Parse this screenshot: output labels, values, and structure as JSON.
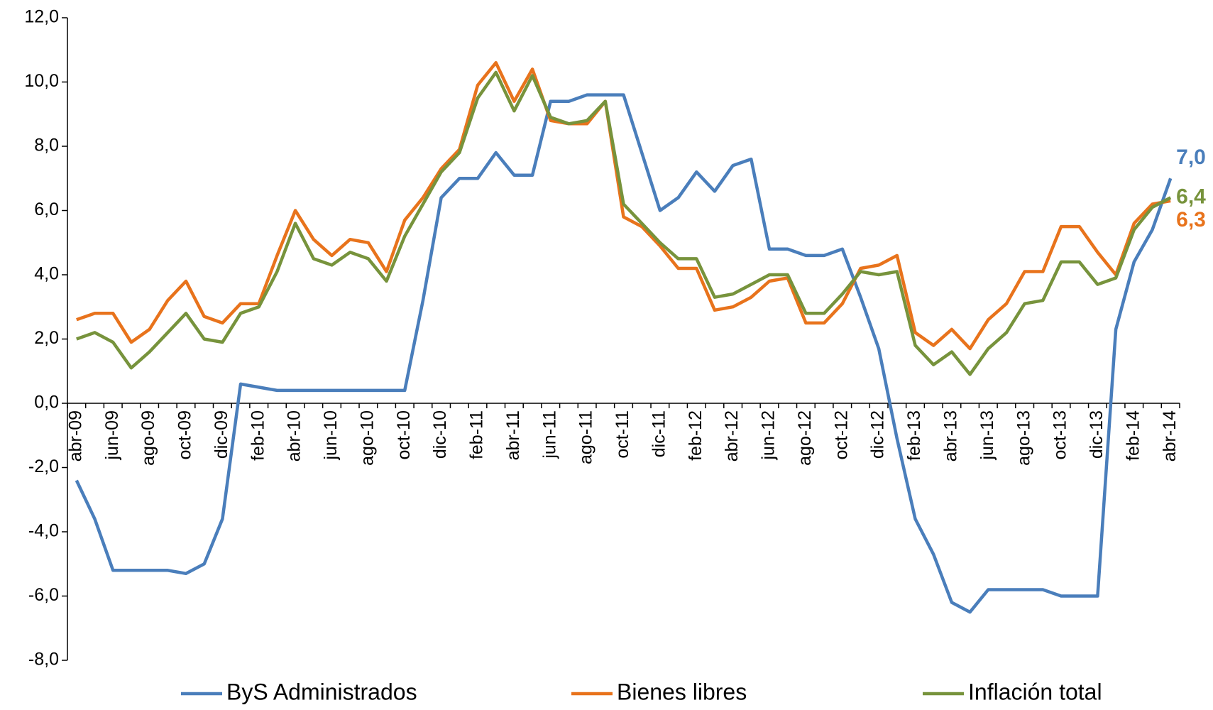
{
  "chart_data": {
    "type": "line",
    "categories": [
      "abr-09",
      null,
      "jun-09",
      null,
      "ago-09",
      null,
      "oct-09",
      null,
      "dic-09",
      null,
      "feb-10",
      null,
      "abr-10",
      null,
      "jun-10",
      null,
      "ago-10",
      null,
      "oct-10",
      null,
      "dic-10",
      null,
      "feb-11",
      null,
      "abr-11",
      null,
      "jun-11",
      null,
      "ago-11",
      null,
      "oct-11",
      null,
      "dic-11",
      null,
      "feb-12",
      null,
      "abr-12",
      null,
      "jun-12",
      null,
      "ago-12",
      null,
      "oct-12",
      null,
      "dic-12",
      null,
      "feb-13",
      null,
      "abr-13",
      null,
      "jun-13",
      null,
      "ago-13",
      null,
      "oct-13",
      null,
      "dic-13",
      null,
      "feb-14",
      null,
      "abr-14"
    ],
    "series": [
      {
        "name": "ByS Administrados",
        "color": "#4a7ebb",
        "values": [
          -2.4,
          -3.6,
          -5.2,
          -5.2,
          -5.2,
          -5.2,
          -5.3,
          -5.0,
          -3.6,
          0.6,
          0.5,
          0.4,
          0.4,
          0.4,
          0.4,
          0.4,
          0.4,
          0.4,
          0.4,
          3.2,
          6.4,
          7.0,
          7.0,
          7.8,
          7.1,
          7.1,
          9.4,
          9.4,
          9.6,
          9.6,
          9.6,
          7.8,
          6.0,
          6.4,
          7.2,
          6.6,
          7.4,
          7.6,
          4.8,
          4.8,
          4.6,
          4.6,
          4.8,
          3.3,
          1.7,
          -1.1,
          -3.6,
          -4.7,
          -6.2,
          -6.5,
          -5.8,
          -5.8,
          -5.8,
          -5.8,
          -6.0,
          -6.0,
          -6.0,
          2.3,
          4.4,
          5.4,
          7.0
        ],
        "value_labels": [
          null,
          null,
          null,
          null,
          null,
          null,
          null,
          null,
          null,
          null,
          null,
          null,
          null,
          null,
          null,
          null,
          null,
          null,
          null,
          null,
          null,
          null,
          null,
          null,
          null,
          null,
          null,
          null,
          null,
          null,
          null,
          null,
          null,
          null,
          null,
          null,
          null,
          null,
          null,
          null,
          null,
          null,
          null,
          null,
          null,
          null,
          null,
          null,
          null,
          null,
          null,
          null,
          null,
          null,
          null,
          null,
          null,
          null,
          null,
          null,
          "7,0"
        ]
      },
      {
        "name": "Bienes libres",
        "color": "#e8731c",
        "values": [
          2.6,
          2.8,
          2.8,
          1.9,
          2.3,
          3.2,
          3.8,
          2.7,
          2.5,
          3.1,
          3.1,
          4.6,
          6.0,
          5.1,
          4.6,
          5.1,
          5.0,
          4.1,
          5.7,
          6.4,
          7.3,
          7.9,
          9.9,
          10.6,
          9.4,
          10.4,
          8.8,
          8.7,
          8.7,
          9.4,
          5.8,
          5.5,
          4.9,
          4.2,
          4.2,
          2.9,
          3.0,
          3.3,
          3.8,
          3.9,
          2.5,
          2.5,
          3.1,
          4.2,
          4.3,
          4.6,
          2.2,
          1.8,
          2.3,
          1.7,
          2.6,
          3.1,
          4.1,
          4.1,
          5.5,
          5.5,
          4.7,
          4.0,
          5.6,
          6.2,
          6.3
        ],
        "value_labels": [
          null,
          null,
          null,
          null,
          null,
          null,
          null,
          null,
          null,
          null,
          null,
          null,
          null,
          null,
          null,
          null,
          null,
          null,
          null,
          null,
          null,
          null,
          null,
          null,
          null,
          null,
          null,
          null,
          null,
          null,
          null,
          null,
          null,
          null,
          null,
          null,
          null,
          null,
          null,
          null,
          null,
          null,
          null,
          null,
          null,
          null,
          null,
          null,
          null,
          null,
          null,
          null,
          null,
          null,
          null,
          null,
          null,
          null,
          null,
          null,
          "6,3"
        ]
      },
      {
        "name": "Inflación total",
        "color": "#77933c",
        "values": [
          2.0,
          2.2,
          1.9,
          1.1,
          1.6,
          2.2,
          2.8,
          2.0,
          1.9,
          2.8,
          3.0,
          4.1,
          5.6,
          4.5,
          4.3,
          4.7,
          4.5,
          3.8,
          5.2,
          6.2,
          7.2,
          7.8,
          9.5,
          10.3,
          9.1,
          10.2,
          8.9,
          8.7,
          8.8,
          9.4,
          6.2,
          5.6,
          5.0,
          4.5,
          4.5,
          3.3,
          3.4,
          3.7,
          4.0,
          4.0,
          2.8,
          2.8,
          3.4,
          4.1,
          4.0,
          4.1,
          1.8,
          1.2,
          1.6,
          0.9,
          1.7,
          2.2,
          3.1,
          3.2,
          4.4,
          4.4,
          3.7,
          3.9,
          5.4,
          6.1,
          6.4
        ],
        "value_labels": [
          null,
          null,
          null,
          null,
          null,
          null,
          null,
          null,
          null,
          null,
          null,
          null,
          null,
          null,
          null,
          null,
          null,
          null,
          null,
          null,
          null,
          null,
          null,
          null,
          null,
          null,
          null,
          null,
          null,
          null,
          null,
          null,
          null,
          null,
          null,
          null,
          null,
          null,
          null,
          null,
          null,
          null,
          null,
          null,
          null,
          null,
          null,
          null,
          null,
          null,
          null,
          null,
          null,
          null,
          null,
          null,
          null,
          null,
          null,
          null,
          "6,4"
        ]
      }
    ],
    "ylim": [
      -8,
      12
    ],
    "yticks": [
      {
        "value": -8,
        "label": "-8,0"
      },
      {
        "value": -6,
        "label": "-6,0"
      },
      {
        "value": -4,
        "label": "-4,0"
      },
      {
        "value": -2,
        "label": "-2,0"
      },
      {
        "value": 0,
        "label": "0,0"
      },
      {
        "value": 2,
        "label": "2,0"
      },
      {
        "value": 4,
        "label": "4,0"
      },
      {
        "value": 6,
        "label": "6,0"
      },
      {
        "value": 8,
        "label": "8,0"
      },
      {
        "value": 10,
        "label": "10,0"
      },
      {
        "value": 12,
        "label": "12,0"
      }
    ],
    "grid": false,
    "legend": "bottom"
  }
}
